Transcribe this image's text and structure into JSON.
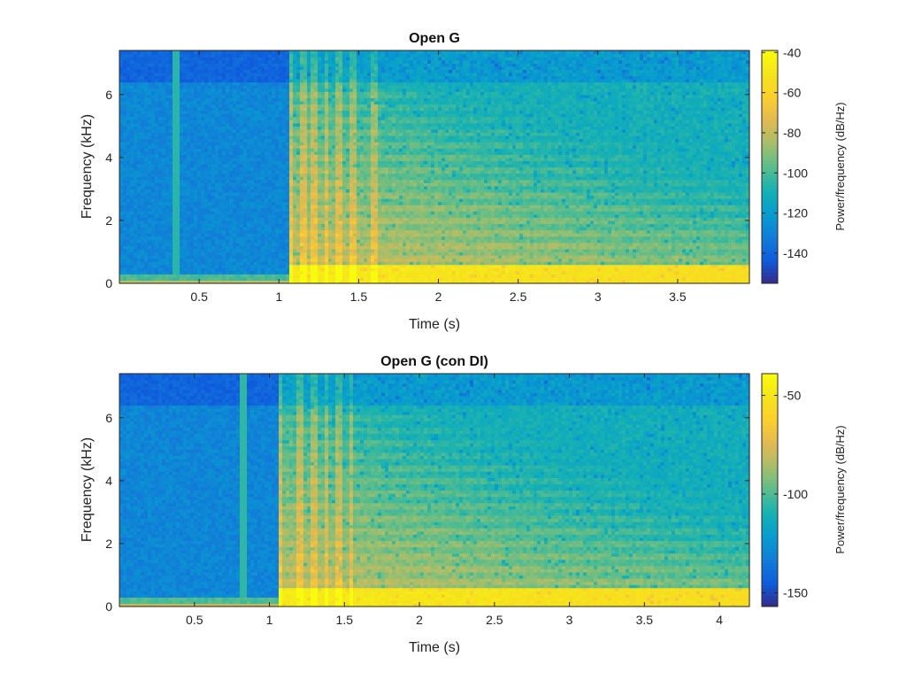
{
  "figure": {
    "background": "#ffffff"
  },
  "chart_data": [
    {
      "type": "heatmap",
      "title": "Open G",
      "xlabel": "Time (s)",
      "ylabel": "Frequency (kHz)",
      "colorbar_label": "Power/frequency (dB/Hz)",
      "xlim": [
        0,
        3.95
      ],
      "ylim": [
        0,
        7.4
      ],
      "xticks": [
        0.5,
        1,
        1.5,
        2,
        2.5,
        3,
        3.5
      ],
      "xticklabels": [
        "0.5",
        "1",
        "1.5",
        "2",
        "2.5",
        "3",
        "3.5"
      ],
      "yticks": [
        0,
        2,
        4,
        6
      ],
      "yticklabels": [
        "0",
        "2",
        "4",
        "6"
      ],
      "clim": [
        -155,
        -39
      ],
      "cticks": [
        -40,
        -60,
        -80,
        -100,
        -120,
        -140
      ],
      "cticklabels": [
        "-40",
        "-60",
        "-80",
        "-100",
        "-120",
        "-140"
      ],
      "colormap": "parula",
      "onset_s": 1.06,
      "transient_lines_s": [
        0.36,
        1.06,
        1.16,
        1.22,
        1.3,
        1.38,
        1.46,
        1.6
      ],
      "harmonic_bands_khz": [
        0.4,
        0.8,
        1.2,
        1.6,
        2.0,
        2.4,
        2.8,
        3.2,
        3.6,
        4.0,
        4.4,
        4.8,
        5.2,
        5.6,
        6.0
      ],
      "level_db": {
        "pre_onset_background": -128,
        "pre_onset_top_band": -140,
        "low_freq_after_onset": -48,
        "mid_freq_after_onset": -80,
        "high_freq_decay_end": -110
      }
    },
    {
      "type": "heatmap",
      "title": "Open G (con DI)",
      "xlabel": "Time (s)",
      "ylabel": "Frequency (kHz)",
      "colorbar_label": "Power/frequency (dB/Hz)",
      "xlim": [
        0,
        4.2
      ],
      "ylim": [
        0,
        7.4
      ],
      "xticks": [
        0.5,
        1,
        1.5,
        2,
        2.5,
        3,
        3.5,
        4
      ],
      "xticklabels": [
        "0.5",
        "1",
        "1.5",
        "2",
        "2.5",
        "3",
        "3.5",
        "4"
      ],
      "yticks": [
        0,
        2,
        4,
        6
      ],
      "yticklabels": [
        "0",
        "2",
        "4",
        "6"
      ],
      "clim": [
        -157,
        -39
      ],
      "cticks": [
        -50,
        -100,
        -150
      ],
      "cticklabels": [
        "-50",
        "-100",
        "-150"
      ],
      "colormap": "parula",
      "onset_s": 1.07,
      "transient_lines_s": [
        0.82,
        1.07,
        1.2,
        1.3,
        1.38,
        1.46,
        1.55
      ],
      "harmonic_bands_khz": [
        0.4,
        0.8,
        1.2,
        1.6,
        2.0,
        2.4,
        2.8,
        3.2,
        3.6,
        4.0,
        4.4,
        4.8,
        5.2,
        5.6,
        6.0
      ],
      "level_db": {
        "pre_onset_background": -130,
        "pre_onset_top_band": -142,
        "low_freq_after_onset": -48,
        "mid_freq_after_onset": -82,
        "high_freq_decay_end": -112
      }
    }
  ]
}
